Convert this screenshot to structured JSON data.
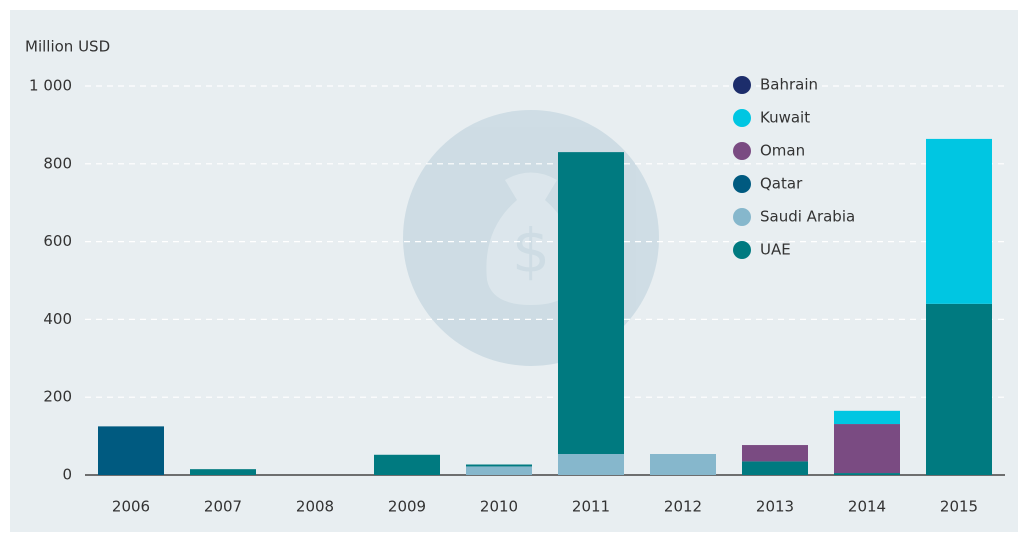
{
  "chart_data": {
    "type": "stacked_bar",
    "y_label": "Million USD",
    "categories": [
      "2006",
      "2007",
      "2008",
      "2009",
      "2010",
      "2011",
      "2012",
      "2013",
      "2014",
      "2015"
    ],
    "series": [
      {
        "name": "Bahrain",
        "color": "#1c2d6b",
        "values": [
          0,
          0,
          0,
          0,
          0,
          0,
          0,
          0,
          0,
          0
        ]
      },
      {
        "name": "Kuwait",
        "color": "#00c6e2",
        "values": [
          0,
          0,
          0,
          0,
          0,
          0,
          0,
          0,
          34,
          424
        ]
      },
      {
        "name": "Oman",
        "color": "#7a4b82",
        "values": [
          0,
          0,
          0,
          0,
          0,
          0,
          0,
          42,
          126,
          0
        ]
      },
      {
        "name": "Qatar",
        "color": "#005a80",
        "values": [
          125,
          0,
          0,
          0,
          0,
          0,
          0,
          0,
          0,
          0
        ]
      },
      {
        "name": "Saudi Arabia",
        "color": "#86b7cc",
        "values": [
          0,
          0,
          0,
          0,
          22,
          54,
          54,
          0,
          0,
          0
        ]
      },
      {
        "name": "UAE",
        "color": "#007a80",
        "values": [
          0,
          15,
          0,
          52,
          5,
          776,
          0,
          35,
          5,
          440
        ]
      }
    ],
    "ylim": [
      0,
      1000
    ],
    "yticks": [
      0,
      200,
      400,
      600,
      800,
      {
        "value": 1000,
        "label": "1 000"
      }
    ],
    "grid": true,
    "legend": "top-right"
  }
}
